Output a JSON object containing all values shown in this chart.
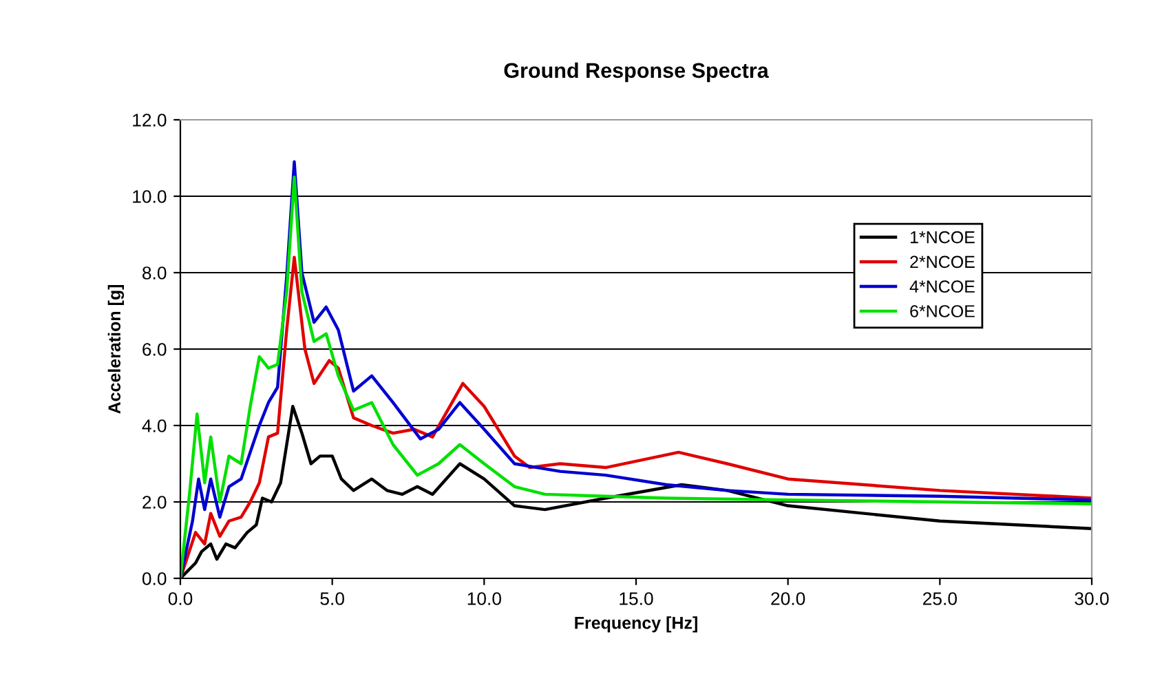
{
  "chart_data": {
    "type": "line",
    "title": "Ground Response Spectra",
    "xlabel": "Frequency [Hz]",
    "ylabel": "Acceleration [g]",
    "xlim": [
      0,
      30
    ],
    "ylim": [
      0,
      12
    ],
    "xticks": [
      {
        "value": 0,
        "label": "0.0"
      },
      {
        "value": 5,
        "label": "5.0"
      },
      {
        "value": 10,
        "label": "10.0"
      },
      {
        "value": 15,
        "label": "15.0"
      },
      {
        "value": 20,
        "label": "20.0"
      },
      {
        "value": 25,
        "label": "25.0"
      },
      {
        "value": 30,
        "label": "30.0"
      }
    ],
    "yticks": [
      {
        "value": 0,
        "label": "0.0"
      },
      {
        "value": 2,
        "label": "2.0"
      },
      {
        "value": 4,
        "label": "4.0"
      },
      {
        "value": 6,
        "label": "6.0"
      },
      {
        "value": 8,
        "label": "8.0"
      },
      {
        "value": 10,
        "label": "10.0"
      },
      {
        "value": 12,
        "label": "12.0"
      }
    ],
    "grid": "y",
    "legend": "right",
    "marker": "none",
    "line_style": "solid",
    "series": [
      {
        "name": "1*NCOE",
        "color": "#000000",
        "x": [
          0,
          0.5,
          0.7,
          1.0,
          1.2,
          1.5,
          1.8,
          2.2,
          2.5,
          2.7,
          3.0,
          3.3,
          3.7,
          4.0,
          4.3,
          4.6,
          5.0,
          5.3,
          5.7,
          6.3,
          6.8,
          7.3,
          7.8,
          8.3,
          9.2,
          10.0,
          11.0,
          12.0,
          14,
          16.5,
          18,
          20,
          25,
          30
        ],
        "values": [
          0,
          0.4,
          0.7,
          0.9,
          0.5,
          0.9,
          0.8,
          1.2,
          1.4,
          2.1,
          2.0,
          2.5,
          4.5,
          3.8,
          3.0,
          3.2,
          3.2,
          2.6,
          2.3,
          2.6,
          2.3,
          2.2,
          2.4,
          2.2,
          3.0,
          2.6,
          1.9,
          1.8,
          2.1,
          2.45,
          2.3,
          1.9,
          1.5,
          1.3
        ]
      },
      {
        "name": "2*NCOE",
        "color": "#e00000",
        "x": [
          0,
          0.5,
          0.8,
          1.0,
          1.3,
          1.6,
          2.0,
          2.3,
          2.6,
          2.9,
          3.2,
          3.5,
          3.75,
          4.1,
          4.4,
          4.9,
          5.2,
          5.7,
          6.3,
          7.0,
          7.7,
          8.3,
          9.3,
          10.0,
          11.0,
          11.5,
          12.5,
          14,
          16.4,
          18,
          20,
          25,
          30
        ],
        "values": [
          0,
          1.2,
          0.9,
          1.7,
          1.1,
          1.5,
          1.6,
          2.0,
          2.5,
          3.7,
          3.8,
          6.5,
          8.4,
          6.0,
          5.1,
          5.7,
          5.5,
          4.2,
          4.0,
          3.8,
          3.9,
          3.7,
          5.1,
          4.5,
          3.2,
          2.9,
          3.0,
          2.9,
          3.3,
          3.0,
          2.6,
          2.3,
          2.1
        ]
      },
      {
        "name": "4*NCOE",
        "color": "#0000d0",
        "x": [
          0,
          0.4,
          0.6,
          0.8,
          1.0,
          1.3,
          1.6,
          2.0,
          2.3,
          2.6,
          2.9,
          3.2,
          3.5,
          3.75,
          4.0,
          4.4,
          4.8,
          5.2,
          5.7,
          6.3,
          7.0,
          7.9,
          8.5,
          9.2,
          10,
          11,
          12.5,
          14,
          16,
          18,
          20,
          25,
          30
        ],
        "values": [
          0,
          1.5,
          2.6,
          1.8,
          2.6,
          1.6,
          2.4,
          2.6,
          3.3,
          4.0,
          4.6,
          5.0,
          7.9,
          10.9,
          8.0,
          6.7,
          7.1,
          6.5,
          4.9,
          5.3,
          4.6,
          3.65,
          3.9,
          4.6,
          3.9,
          3.0,
          2.8,
          2.7,
          2.45,
          2.3,
          2.2,
          2.15,
          2.05
        ]
      },
      {
        "name": "6*NCOE",
        "color": "#00e000",
        "x": [
          0,
          0.3,
          0.55,
          0.8,
          1.0,
          1.3,
          1.6,
          2.0,
          2.3,
          2.6,
          2.9,
          3.2,
          3.5,
          3.75,
          4.0,
          4.4,
          4.8,
          5.2,
          5.7,
          6.3,
          7.0,
          7.8,
          8.5,
          9.2,
          10,
          11,
          12,
          14,
          16,
          20,
          25,
          30
        ],
        "values": [
          0,
          2.2,
          4.3,
          2.5,
          3.7,
          2.0,
          3.2,
          3.0,
          4.5,
          5.8,
          5.5,
          5.6,
          7.5,
          10.5,
          7.5,
          6.2,
          6.4,
          5.3,
          4.4,
          4.6,
          3.5,
          2.7,
          3.0,
          3.5,
          3.0,
          2.4,
          2.2,
          2.15,
          2.1,
          2.05,
          2.0,
          1.95
        ]
      }
    ]
  }
}
